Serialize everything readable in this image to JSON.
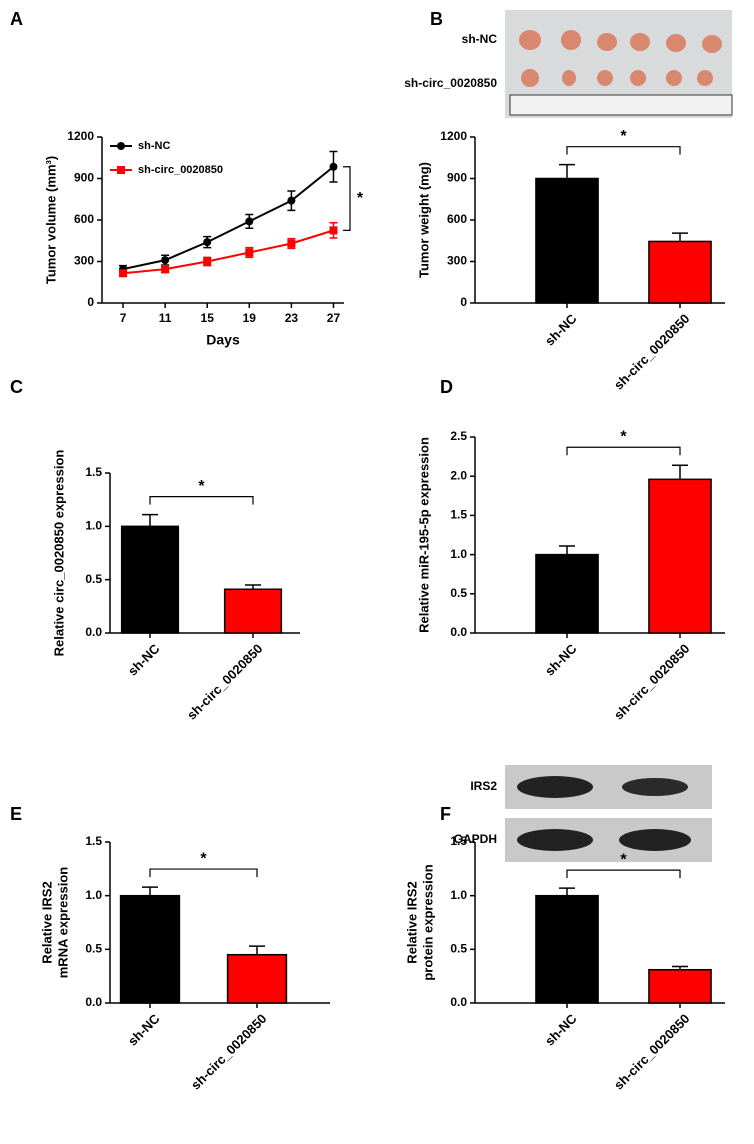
{
  "chart_data": [
    {
      "type": "line",
      "label": "A",
      "ylabel": "Tumor volume (mm³)",
      "xlabel": "Days",
      "x": [
        7,
        11,
        15,
        19,
        23,
        27
      ],
      "xlim": [
        5,
        28
      ],
      "xticks": [
        7,
        11,
        15,
        19,
        23,
        27
      ],
      "ylim": [
        0,
        1200
      ],
      "yticks": [
        0,
        300,
        600,
        900,
        1200
      ],
      "significance": "*",
      "series": [
        {
          "name": "sh-NC",
          "color": "#000000",
          "values": [
            245,
            310,
            440,
            590,
            740,
            985
          ],
          "errors": [
            25,
            35,
            40,
            50,
            70,
            110
          ]
        },
        {
          "name": "sh-circ_0020850",
          "color": "#ff0000",
          "values": [
            215,
            245,
            300,
            365,
            430,
            525
          ],
          "errors": [
            20,
            25,
            30,
            35,
            35,
            55
          ]
        }
      ]
    },
    {
      "type": "bar",
      "label": "B",
      "image_labels": [
        "sh-NC",
        "sh-circ_0020850"
      ],
      "ylabel": "Tumor weight (mg)",
      "categories": [
        "sh-NC",
        "sh-circ_0020850"
      ],
      "values": [
        900,
        445
      ],
      "errors": [
        100,
        60
      ],
      "colors": [
        "#000000",
        "#ff0000"
      ],
      "ylim": [
        0,
        1200
      ],
      "yticks": [
        0,
        300,
        600,
        900,
        1200
      ],
      "significance": "*"
    },
    {
      "type": "bar",
      "label": "C",
      "ylabel": "Relative circ_0020850 expression",
      "categories": [
        "sh-NC",
        "sh-circ_0020850"
      ],
      "values": [
        1.0,
        0.41
      ],
      "errors": [
        0.11,
        0.04
      ],
      "colors": [
        "#000000",
        "#ff0000"
      ],
      "ylim": [
        0,
        1.5
      ],
      "yticks": [
        {
          "value": 0,
          "label": "0.0"
        },
        0.5,
        {
          "value": 1,
          "label": "1.0"
        },
        1.5
      ],
      "significance": "*"
    },
    {
      "type": "bar",
      "label": "D",
      "ylabel": "Relative miR-195-5p expression",
      "categories": [
        "sh-NC",
        "sh-circ_0020850"
      ],
      "values": [
        1.0,
        1.96
      ],
      "errors": [
        0.11,
        0.18
      ],
      "colors": [
        "#000000",
        "#ff0000"
      ],
      "ylim": [
        0,
        2.5
      ],
      "yticks": [
        {
          "value": 0,
          "label": "0.0"
        },
        0.5,
        {
          "value": 1,
          "label": "1.0"
        },
        1.5,
        {
          "value": 2,
          "label": "2.0"
        },
        2.5
      ],
      "significance": "*"
    },
    {
      "type": "bar",
      "label": "E",
      "ylabel": [
        "Relative IRS2",
        "mRNA expression"
      ],
      "categories": [
        "sh-NC",
        "sh-circ_0020850"
      ],
      "values": [
        1.0,
        0.45
      ],
      "errors": [
        0.08,
        0.08
      ],
      "colors": [
        "#000000",
        "#ff0000"
      ],
      "ylim": [
        0,
        1.5
      ],
      "yticks": [
        {
          "value": 0,
          "label": "0.0"
        },
        0.5,
        {
          "value": 1,
          "label": "1.0"
        },
        1.5
      ],
      "significance": "*"
    },
    {
      "type": "bar",
      "label": "F",
      "blot_labels": [
        "IRS2",
        "GAPDH"
      ],
      "ylabel": [
        "Relative IRS2",
        "protein expression"
      ],
      "categories": [
        "sh-NC",
        "sh-circ_0020850"
      ],
      "values": [
        1.0,
        0.31
      ],
      "errors": [
        0.07,
        0.03
      ],
      "colors": [
        "#000000",
        "#ff0000"
      ],
      "ylim": [
        0,
        1.5
      ],
      "yticks": [
        {
          "value": 0,
          "label": "0.0"
        },
        0.5,
        {
          "value": 1,
          "label": "1.0"
        },
        1.5
      ],
      "significance": "*"
    }
  ]
}
